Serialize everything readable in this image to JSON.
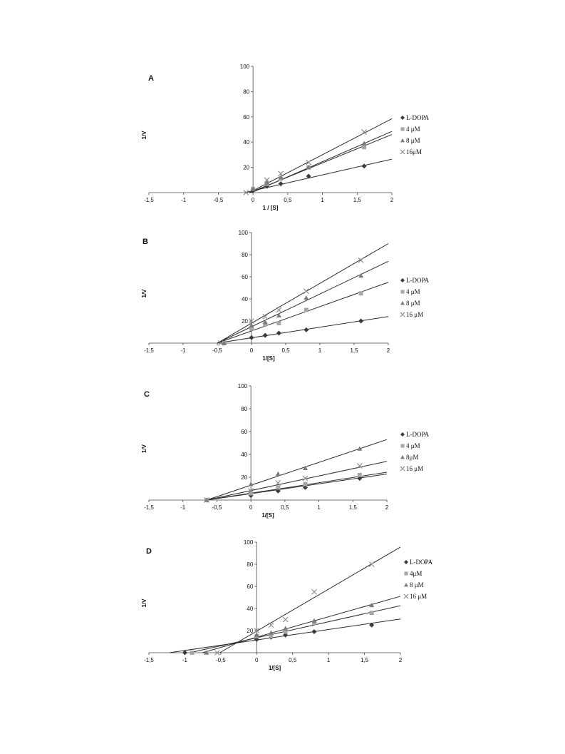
{
  "colors": {
    "line": "#2b2b2b",
    "axis": "#444444",
    "L-DOPA": "#3a3a3a",
    "conc1": "#a6a6a6",
    "conc2": "#7a7a7a",
    "conc3": "#8c8c8c"
  },
  "chart_data": [
    {
      "type": "scatter",
      "panel_label": "A",
      "xlabel": "1 / [S]",
      "ylabel": "1/V",
      "xlim": [
        -1.5,
        2
      ],
      "ylim": [
        0,
        100
      ],
      "xticks": [
        "-1,5",
        "-1",
        "-0,5",
        "0",
        "0,5",
        "1",
        "1,5",
        "2"
      ],
      "yticks": [
        "20",
        "40",
        "60",
        "80",
        "100"
      ],
      "legend": "right",
      "series": [
        {
          "name": "L-DOPA",
          "marker": "diamond",
          "x": [
            0,
            0.2,
            0.4,
            0.8,
            1.6
          ],
          "y": [
            2,
            5,
            7,
            13,
            21
          ],
          "fit": {
            "slope": 12.5,
            "intercept": 1.5
          }
        },
        {
          "name": "4 μM",
          "marker": "square",
          "x": [
            0,
            0.2,
            0.4,
            0.8,
            1.6
          ],
          "y": [
            3,
            7,
            11,
            20,
            36
          ],
          "fit": {
            "slope": 22.5,
            "intercept": 1.0
          }
        },
        {
          "name": "8 μM",
          "marker": "triangle",
          "x": [
            0,
            0.2,
            0.4,
            0.8,
            1.6
          ],
          "y": [
            3,
            8,
            12,
            20,
            39
          ],
          "fit": {
            "slope": 24.0,
            "intercept": 0.5
          }
        },
        {
          "name": "16μM",
          "marker": "cross",
          "x": [
            -0.1,
            0.2,
            0.4,
            0.8,
            1.6
          ],
          "y": [
            0,
            10,
            15,
            24,
            48
          ],
          "fit": {
            "slope": 28.5,
            "intercept": 1.5
          }
        }
      ]
    },
    {
      "type": "scatter",
      "panel_label": "B",
      "xlabel": "1/[S]",
      "ylabel": "1/V",
      "xlim": [
        -1.5,
        2
      ],
      "ylim": [
        0,
        100
      ],
      "xticks": [
        "-1,5",
        "-1",
        "-0,5",
        "0",
        "0,5",
        "1",
        "1,5",
        "2"
      ],
      "yticks": [
        "20",
        "40",
        "60",
        "80",
        "100"
      ],
      "legend": "right",
      "series": [
        {
          "name": "L-DOPA",
          "marker": "diamond",
          "x": [
            -0.4,
            0,
            0.2,
            0.4,
            0.8,
            1.6
          ],
          "y": [
            0,
            5,
            7,
            9,
            12,
            20
          ],
          "fit": {
            "slope": 9.6,
            "intercept": 4.8
          }
        },
        {
          "name": "4 μM",
          "marker": "square",
          "x": [
            -0.4,
            0,
            0.2,
            0.4,
            0.8,
            1.6
          ],
          "y": [
            0,
            13,
            17,
            18,
            30,
            45
          ],
          "fit": {
            "slope": 22.0,
            "intercept": 11.0
          }
        },
        {
          "name": "8 μM",
          "marker": "triangle",
          "x": [
            -0.4,
            0,
            0.2,
            0.4,
            0.8,
            1.6
          ],
          "y": [
            0,
            16,
            19,
            25,
            41,
            61
          ],
          "fit": {
            "slope": 29.6,
            "intercept": 14.8
          }
        },
        {
          "name": "16 μM",
          "marker": "cross",
          "x": [
            -0.45,
            0,
            0.2,
            0.4,
            0.8,
            1.6
          ],
          "y": [
            0,
            20,
            24,
            30,
            47,
            75
          ],
          "fit": {
            "slope": 36.0,
            "intercept": 18.0
          }
        }
      ]
    },
    {
      "type": "scatter",
      "panel_label": "C",
      "xlabel": "1/[S]",
      "ylabel": "1/V",
      "xlim": [
        -1.5,
        2
      ],
      "ylim": [
        0,
        100
      ],
      "xticks": [
        "-1,5",
        "-1",
        "-0,5",
        "0",
        "0,5",
        "1",
        "1,5",
        "2"
      ],
      "yticks": [
        "20",
        "40",
        "60",
        "80",
        "100"
      ],
      "legend": "right",
      "series": [
        {
          "name": "L-DOPA",
          "marker": "diamond",
          "x": [
            -0.65,
            0,
            0.4,
            0.8,
            1.6
          ],
          "y": [
            0,
            4,
            8,
            11,
            19
          ],
          "fit": {
            "slope": 8.6,
            "intercept": 5.6
          }
        },
        {
          "name": "4 μM",
          "marker": "square",
          "x": [
            -0.65,
            0,
            0.4,
            0.8,
            1.6
          ],
          "y": [
            0,
            6,
            11,
            14,
            22
          ],
          "fit": {
            "slope": 9.2,
            "intercept": 6.0
          }
        },
        {
          "name": "8μM",
          "marker": "triangle",
          "x": [
            -0.65,
            0,
            0.4,
            0.8,
            1.6
          ],
          "y": [
            0,
            14,
            23,
            28,
            45
          ],
          "fit": {
            "slope": 20.0,
            "intercept": 13.0
          }
        },
        {
          "name": "16 μM",
          "marker": "cross",
          "x": [
            -0.65,
            0,
            0.4,
            0.8,
            1.6
          ],
          "y": [
            0,
            8,
            15,
            19,
            30
          ],
          "fit": {
            "slope": 12.8,
            "intercept": 8.3
          }
        }
      ]
    },
    {
      "type": "scatter",
      "panel_label": "D",
      "xlabel": "1/[S]",
      "ylabel": "1/V",
      "xlim": [
        -1.5,
        2
      ],
      "ylim": [
        0,
        100
      ],
      "xticks": [
        "-1,5",
        "-1",
        "-0,5",
        "0",
        "0,5",
        "1",
        "1,5",
        "2"
      ],
      "yticks": [
        "20",
        "40",
        "60",
        "80",
        "100"
      ],
      "legend": "right",
      "series": [
        {
          "name": "L-DOPA",
          "marker": "diamond",
          "x": [
            -1,
            0,
            0.2,
            0.4,
            0.8,
            1.6
          ],
          "y": [
            0,
            12,
            14,
            16,
            19,
            25
          ],
          "fit": {
            "slope": 9.5,
            "intercept": 11.5
          }
        },
        {
          "name": "4μM",
          "marker": "square",
          "x": [
            -0.9,
            0,
            0.2,
            0.4,
            0.8,
            1.6
          ],
          "y": [
            0,
            15,
            15,
            19,
            27,
            36
          ],
          "fit": {
            "slope": 14.5,
            "intercept": 13.5
          }
        },
        {
          "name": "8 μM",
          "marker": "triangle",
          "x": [
            -0.7,
            0,
            0.2,
            0.4,
            0.8,
            1.6
          ],
          "y": [
            0,
            16,
            18,
            22,
            29,
            43
          ],
          "fit": {
            "slope": 18.5,
            "intercept": 14.0
          }
        },
        {
          "name": "16 μM",
          "marker": "cross",
          "x": [
            -0.55,
            0,
            0.2,
            0.4,
            0.8,
            1.6
          ],
          "y": [
            0,
            20,
            25,
            30,
            55,
            80
          ],
          "fit": {
            "slope": 38.0,
            "intercept": 19.5
          }
        }
      ]
    }
  ]
}
